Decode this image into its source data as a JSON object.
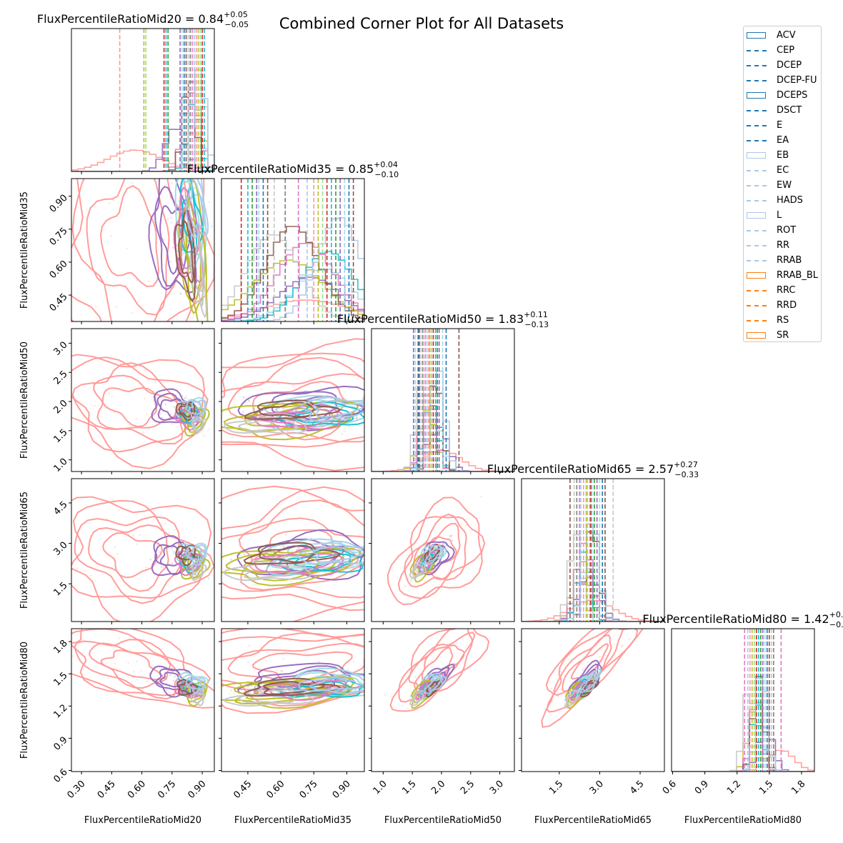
{
  "title": "Combined Corner Plot for All Datasets",
  "chart_data": {
    "type": "corner",
    "variables": [
      "FluxPercentileRatioMid20",
      "FluxPercentileRatioMid35",
      "FluxPercentileRatioMid50",
      "FluxPercentileRatioMid65",
      "FluxPercentileRatioMid80"
    ],
    "axis_labels": [
      "FluxPercentileRatioMid20",
      "FluxPercentileRatioMid35",
      "FluxPercentileRatioMid50",
      "FluxPercentileRatioMid65",
      "FluxPercentileRatioMid80"
    ],
    "ranges": [
      [
        0.25,
        0.96
      ],
      [
        0.33,
        0.98
      ],
      [
        0.8,
        3.25
      ],
      [
        0.1,
        5.4
      ],
      [
        0.59,
        1.92
      ]
    ],
    "ticks": [
      [
        0.3,
        0.45,
        0.6,
        0.75,
        0.9
      ],
      [
        0.45,
        0.6,
        0.75,
        0.9
      ],
      [
        1.0,
        1.5,
        2.0,
        2.5,
        3.0
      ],
      [
        1.5,
        3.0,
        4.5
      ],
      [
        0.6,
        0.9,
        1.2,
        1.5,
        1.8
      ]
    ],
    "tick_labels": [
      [
        "0.30",
        "0.45",
        "0.60",
        "0.75",
        "0.90"
      ],
      [
        "0.45",
        "0.60",
        "0.75",
        "0.90"
      ],
      [
        "1.0",
        "1.5",
        "2.0",
        "2.5",
        "3.0"
      ],
      [
        "1.5",
        "3.0",
        "4.5"
      ],
      [
        "0.6",
        "0.9",
        "1.2",
        "1.5",
        "1.8"
      ]
    ],
    "panel_titles": [
      {
        "name": "FluxPercentileRatioMid20",
        "median": "0.84",
        "plus": "+0.05",
        "minus": "−0.05"
      },
      {
        "name": "FluxPercentileRatioMid35",
        "median": "0.85",
        "plus": "+0.04",
        "minus": "−0.10"
      },
      {
        "name": "FluxPercentileRatioMid50",
        "median": "1.83",
        "plus": "+0.11",
        "minus": "−0.13"
      },
      {
        "name": "FluxPercentileRatioMid65",
        "median": "2.57",
        "plus": "+0.27",
        "minus": "−0.33"
      },
      {
        "name": "FluxPercentileRatioMid80",
        "median": "1.42",
        "plus": "+0.",
        "minus": "−0."
      }
    ],
    "datasets": [
      {
        "name": "ACV",
        "legend_style": "box",
        "color": "#1f77b4"
      },
      {
        "name": "CEP",
        "legend_style": "dashed",
        "color": "#1f77b4"
      },
      {
        "name": "DCEP",
        "legend_style": "dashed",
        "color": "#1f77b4"
      },
      {
        "name": "DCEP-FU",
        "legend_style": "dashed",
        "color": "#1f77b4"
      },
      {
        "name": "DCEPS",
        "legend_style": "box",
        "color": "#1f77b4"
      },
      {
        "name": "DSCT",
        "legend_style": "dashed",
        "color": "#1f77b4"
      },
      {
        "name": "E",
        "legend_style": "dashed",
        "color": "#1f77b4"
      },
      {
        "name": "EA",
        "legend_style": "dashed",
        "color": "#1f77b4"
      },
      {
        "name": "EB",
        "legend_style": "box",
        "color": "#aec7e8"
      },
      {
        "name": "EC",
        "legend_style": "dashed",
        "color": "#aec7e8"
      },
      {
        "name": "EW",
        "legend_style": "dashed",
        "color": "#aec7e8"
      },
      {
        "name": "HADS",
        "legend_style": "dashed",
        "color": "#aec7e8"
      },
      {
        "name": "L",
        "legend_style": "box",
        "color": "#aec7e8"
      },
      {
        "name": "ROT",
        "legend_style": "dashed",
        "color": "#aec7e8"
      },
      {
        "name": "RR",
        "legend_style": "dashed",
        "color": "#aec7e8"
      },
      {
        "name": "RRAB",
        "legend_style": "dashed",
        "color": "#aec7e8"
      },
      {
        "name": "RRAB_BL",
        "legend_style": "box",
        "color": "#ff7f0e"
      },
      {
        "name": "RRC",
        "legend_style": "dashed",
        "color": "#ff7f0e"
      },
      {
        "name": "RRD",
        "legend_style": "dashed",
        "color": "#ff7f0e"
      },
      {
        "name": "RS",
        "legend_style": "dashed",
        "color": "#ff7f0e"
      },
      {
        "name": "SR",
        "legend_style": "box",
        "color": "#ff7f0e"
      }
    ],
    "dashed_line_positions": [
      [
        0.49,
        0.61,
        0.62,
        0.71,
        0.72,
        0.73,
        0.79,
        0.8,
        0.81,
        0.82,
        0.83,
        0.84,
        0.85,
        0.86,
        0.87,
        0.88,
        0.89,
        0.9,
        0.91
      ],
      [
        0.42,
        0.45,
        0.47,
        0.49,
        0.5,
        0.52,
        0.54,
        0.57,
        0.62,
        0.68,
        0.72,
        0.75,
        0.77,
        0.79,
        0.81,
        0.83,
        0.85,
        0.87,
        0.89,
        0.91,
        0.93
      ],
      [
        1.52,
        1.55,
        1.6,
        1.62,
        1.65,
        1.68,
        1.72,
        1.75,
        1.78,
        1.8,
        1.83,
        1.86,
        1.9,
        1.93,
        1.96,
        2.02,
        2.08,
        2.3
      ],
      [
        1.9,
        2.05,
        2.15,
        2.25,
        2.3,
        2.4,
        2.5,
        2.55,
        2.65,
        2.7,
        2.8,
        2.9,
        3.0,
        3.1,
        3.2,
        3.5
      ],
      [
        1.27,
        1.3,
        1.32,
        1.34,
        1.36,
        1.38,
        1.4,
        1.42,
        1.44,
        1.46,
        1.48,
        1.5,
        1.52,
        1.54,
        1.61
      ]
    ],
    "series_colors": [
      "#ff9896",
      "#d62728",
      "#9467bd",
      "#8c564b",
      "#e377c2",
      "#bcbd22",
      "#17becf",
      "#9edae5",
      "#c7c7c7",
      "#aec7e8",
      "#98df8a",
      "#2ca02c",
      "#1f77b4",
      "#7f7f7f"
    ]
  }
}
